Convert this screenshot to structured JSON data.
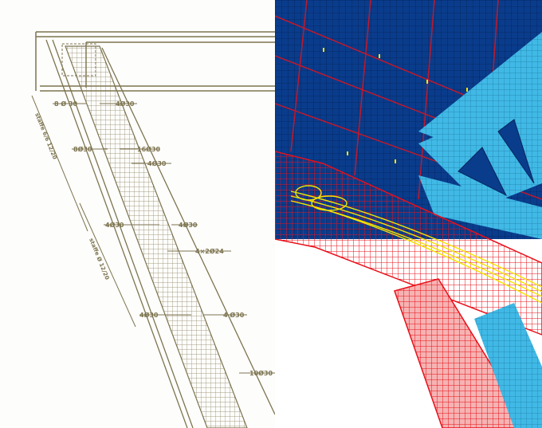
{
  "drawing": {
    "labels": {
      "top_left": "8 Ø 30",
      "top_right": "4Ø30",
      "mid_left": "8Ø30",
      "mid_right_top": "16Ø30",
      "mid_right_bottom": "4Ø30",
      "lower_left": "4Ø30",
      "lower_right": "4Ø30",
      "stirrup_group": "4×2Ø24",
      "bottom_left": "4Ø30",
      "bottom_right": "4 Ø30",
      "bottom_end": "10Ø30",
      "stirrups_upper": "staffe 6/6 12/20",
      "stirrups_lower": "staffe Ø 12/20"
    }
  },
  "colors": {
    "drawing_ink": "#7d7450",
    "slab_dark": "#0a3c8c",
    "beam_light": "#41b9e6",
    "mesh_red": "#e8101a",
    "highlight_yellow": "#f5e600",
    "mesh_line": "#06245a"
  }
}
